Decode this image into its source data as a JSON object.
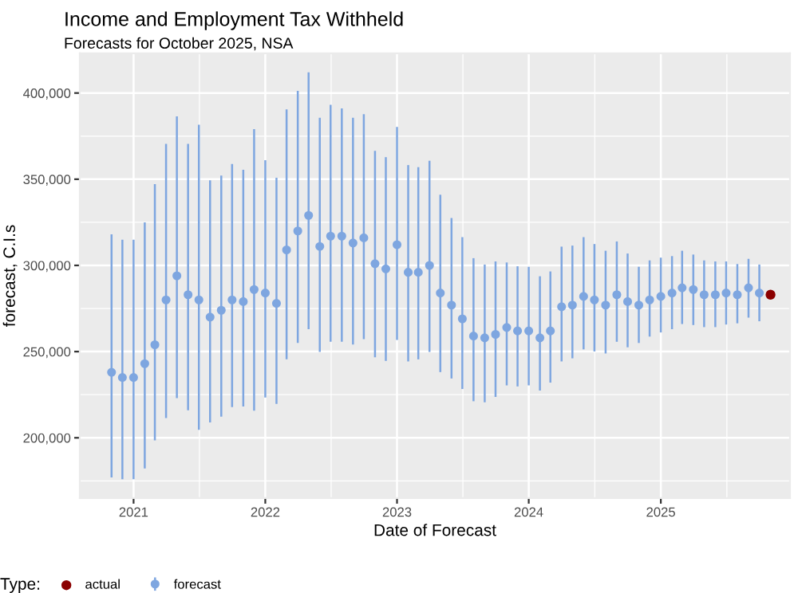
{
  "chart_data": {
    "type": "scatter",
    "title": "Income and Employment Tax Withheld",
    "subtitle": "Forecasts for October 2025, NSA",
    "xlabel": "Date of Forecast",
    "ylabel": "forecast, C.I.s",
    "legend_title": "Type:",
    "legend": "bottom",
    "grid": true,
    "marker": "circle",
    "xlim": [
      "2020-08-05",
      "2025-12-25"
    ],
    "xticks": [
      "2021",
      "2022",
      "2023",
      "2024",
      "2025"
    ],
    "ylim": [
      165000,
      423000
    ],
    "yticks": [
      {
        "value": 200000,
        "label": "200,000"
      },
      {
        "value": 250000,
        "label": "250,000"
      },
      {
        "value": 300000,
        "label": "300,000"
      },
      {
        "value": 350000,
        "label": "350,000"
      },
      {
        "value": 400000,
        "label": "400,000"
      }
    ],
    "series": [
      {
        "name": "actual",
        "color": "#8b0000",
        "x": [
          "2025-11"
        ],
        "values": [
          283000
        ]
      },
      {
        "name": "forecast",
        "color": "#7ea6e0",
        "x": [
          "2020-11",
          "2020-12",
          "2021-01",
          "2021-02",
          "2021-03",
          "2021-04",
          "2021-05",
          "2021-06",
          "2021-07",
          "2021-08",
          "2021-09",
          "2021-10",
          "2021-11",
          "2021-12",
          "2022-01",
          "2022-02",
          "2022-03",
          "2022-04",
          "2022-05",
          "2022-06",
          "2022-07",
          "2022-08",
          "2022-09",
          "2022-10",
          "2022-11",
          "2022-12",
          "2023-01",
          "2023-02",
          "2023-03",
          "2023-04",
          "2023-05",
          "2023-06",
          "2023-07",
          "2023-08",
          "2023-09",
          "2023-10",
          "2023-11",
          "2023-12",
          "2024-01",
          "2024-02",
          "2024-03",
          "2024-04",
          "2024-05",
          "2024-06",
          "2024-07",
          "2024-08",
          "2024-09",
          "2024-10",
          "2024-11",
          "2024-12",
          "2025-01",
          "2025-02",
          "2025-03",
          "2025-04",
          "2025-05",
          "2025-06",
          "2025-07",
          "2025-08",
          "2025-09",
          "2025-10"
        ],
        "values": [
          238000,
          235000,
          235000,
          243000,
          254000,
          280000,
          294000,
          283000,
          280000,
          270000,
          274000,
          280000,
          279000,
          286000,
          284000,
          278000,
          309000,
          320000,
          329000,
          311000,
          317000,
          317000,
          313000,
          316000,
          301000,
          298000,
          312000,
          296000,
          296000,
          300000,
          284000,
          277000,
          269000,
          259000,
          258000,
          260000,
          264000,
          262000,
          262000,
          258000,
          262000,
          276000,
          277000,
          282000,
          280000,
          277000,
          283000,
          279000,
          277000,
          280000,
          282000,
          284000,
          287000,
          286000,
          283000,
          283000,
          284000,
          283000,
          287000,
          284000
        ],
        "errors": [
          [
            177000,
            318000
          ],
          [
            176000,
            314900
          ],
          [
            176000,
            314900
          ],
          [
            182200,
            325000
          ],
          [
            198500,
            347200
          ],
          [
            211400,
            370500
          ],
          [
            223000,
            386500
          ],
          [
            216000,
            370500
          ],
          [
            204600,
            381600
          ],
          [
            208900,
            349300
          ],
          [
            212300,
            352100
          ],
          [
            217800,
            358800
          ],
          [
            218100,
            355500
          ],
          [
            215700,
            379100
          ],
          [
            223400,
            361000
          ],
          [
            219700,
            350800
          ],
          [
            245500,
            390500
          ],
          [
            255000,
            401200
          ],
          [
            263000,
            412000
          ],
          [
            249800,
            385600
          ],
          [
            255700,
            393200
          ],
          [
            255700,
            391100
          ],
          [
            254100,
            385600
          ],
          [
            257200,
            387700
          ],
          [
            246700,
            366500
          ],
          [
            244600,
            362800
          ],
          [
            256800,
            380300
          ],
          [
            244300,
            358200
          ],
          [
            245500,
            357000
          ],
          [
            249800,
            360700
          ],
          [
            238100,
            341000
          ],
          [
            234400,
            327500
          ],
          [
            228300,
            316400
          ],
          [
            221200,
            304200
          ],
          [
            220600,
            300500
          ],
          [
            223700,
            302300
          ],
          [
            230400,
            301700
          ],
          [
            229800,
            299500
          ],
          [
            230400,
            299200
          ],
          [
            227400,
            293700
          ],
          [
            232000,
            296500
          ],
          [
            244300,
            310900
          ],
          [
            246100,
            311500
          ],
          [
            251300,
            316400
          ],
          [
            250100,
            312400
          ],
          [
            248900,
            308500
          ],
          [
            255700,
            313900
          ],
          [
            252500,
            306900
          ],
          [
            255000,
            299200
          ],
          [
            258700,
            302900
          ],
          [
            261100,
            304500
          ],
          [
            263000,
            305400
          ],
          [
            266000,
            308500
          ],
          [
            265400,
            306300
          ],
          [
            264200,
            302900
          ],
          [
            264200,
            302300
          ],
          [
            265700,
            302300
          ],
          [
            266400,
            300800
          ],
          [
            269700,
            303800
          ],
          [
            267600,
            300500
          ]
        ]
      }
    ]
  }
}
